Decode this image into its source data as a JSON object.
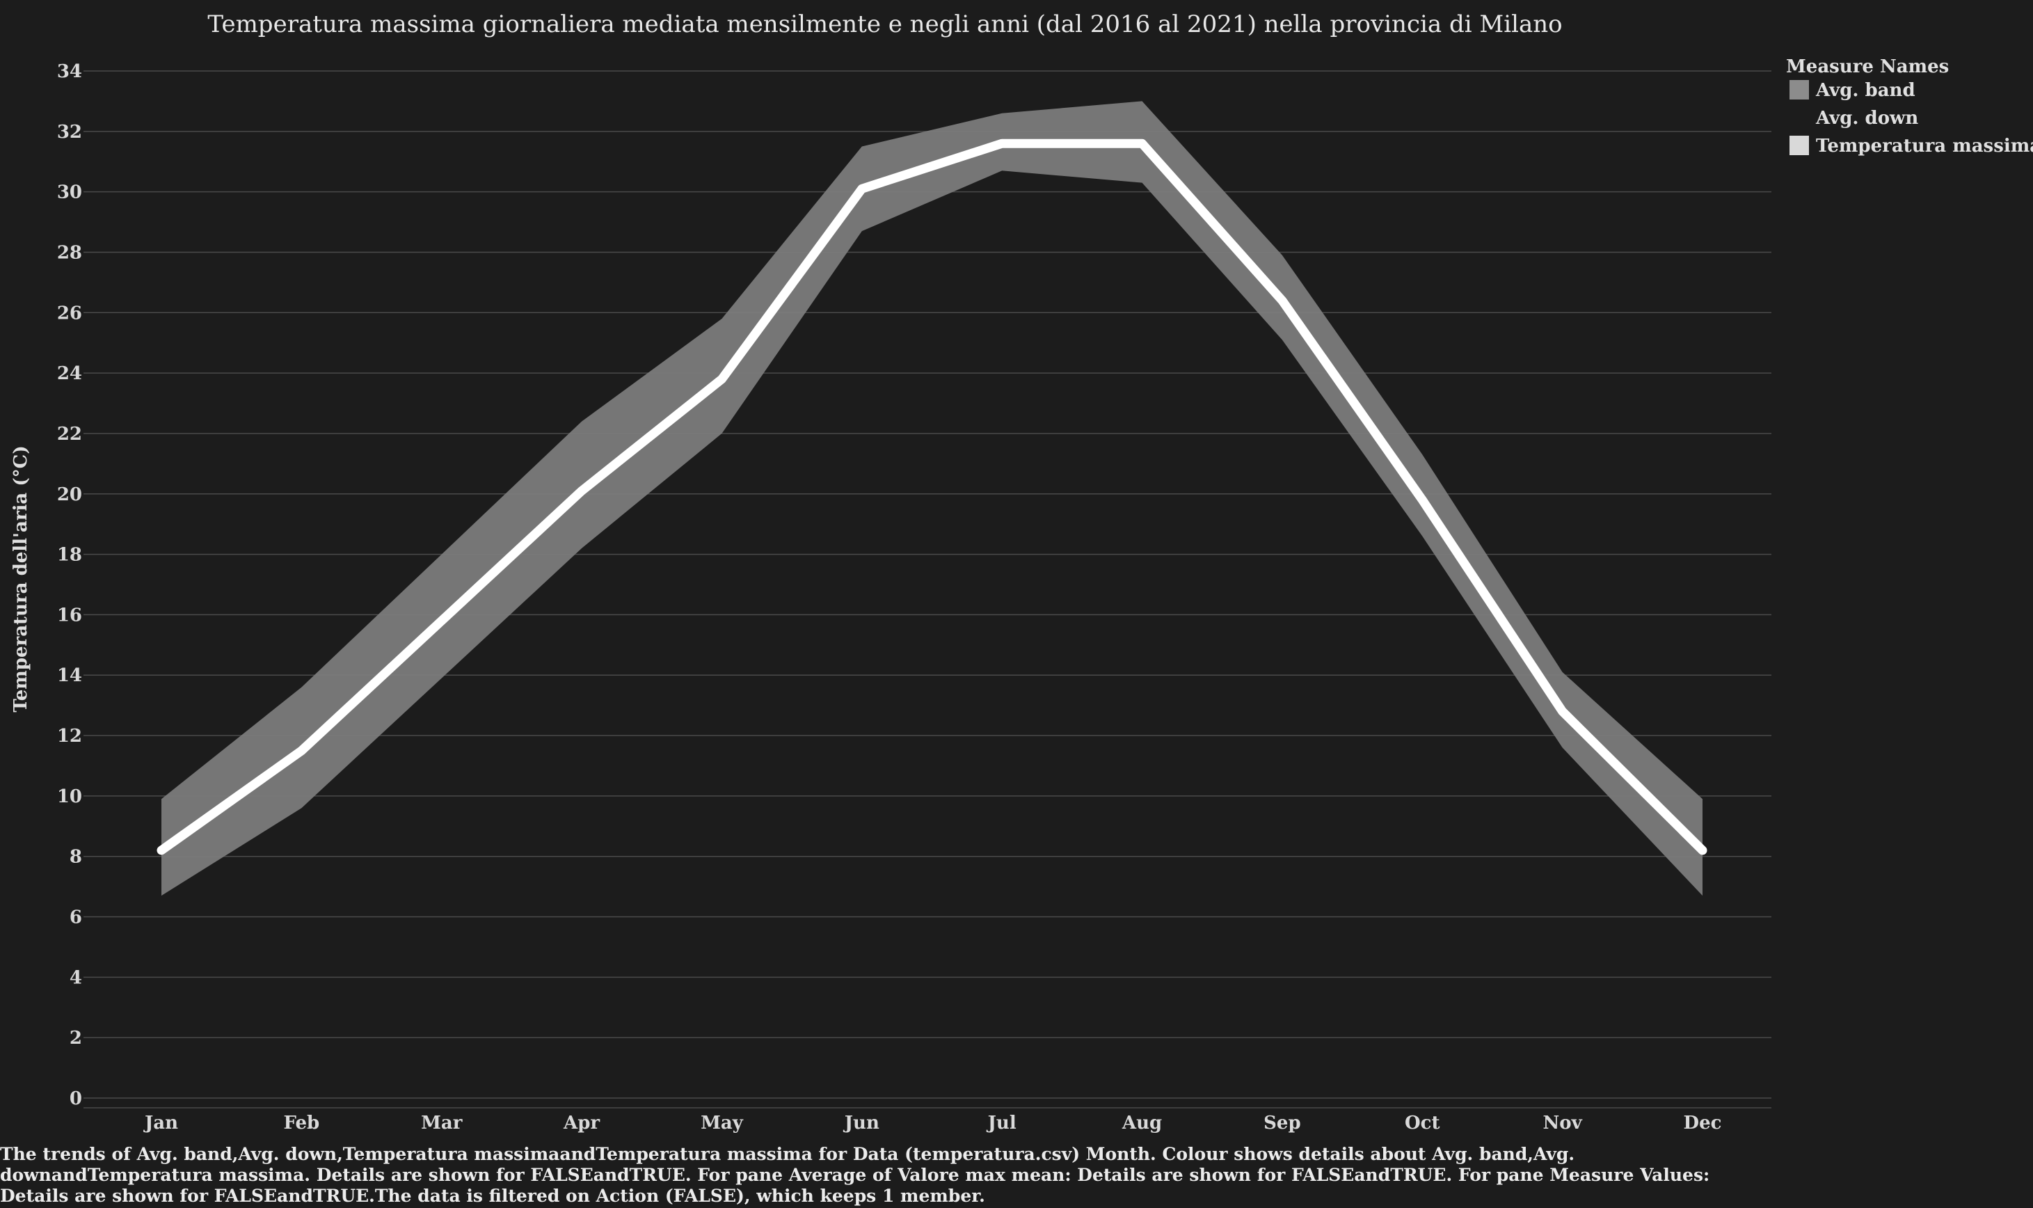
{
  "chart_data": {
    "type": "area",
    "title": "Temperatura massima giornaliera mediata mensilmente e negli anni (dal 2016 al 2021) nella provincia di Milano",
    "ylabel": "Temperatura dell'aria (°C)",
    "xlabel": "",
    "ylim": [
      0,
      34
    ],
    "yticks": [
      0,
      2,
      4,
      6,
      8,
      10,
      12,
      14,
      16,
      18,
      20,
      22,
      24,
      26,
      28,
      30,
      32,
      34
    ],
    "categories": [
      "Jan",
      "Feb",
      "Mar",
      "Apr",
      "May",
      "Jun",
      "Jul",
      "Aug",
      "Sep",
      "Oct",
      "Nov",
      "Dec"
    ],
    "grid": true,
    "legend_position": "top-right",
    "legend_title": "Measure Names",
    "series": [
      {
        "name": "Avg. band",
        "kind": "band",
        "upper": [
          9.9,
          13.6,
          18.0,
          22.4,
          25.8,
          31.5,
          32.6,
          33.0,
          27.9,
          21.3,
          14.1,
          9.9
        ],
        "lower": [
          6.7,
          9.6,
          13.9,
          18.2,
          22.0,
          28.7,
          30.7,
          30.3,
          25.1,
          18.6,
          11.6,
          6.7
        ],
        "color": "#7b7b7b"
      },
      {
        "name": "Avg. down",
        "kind": "hidden",
        "color": "#1c1c1c"
      },
      {
        "name": "Temperatura massima",
        "kind": "line",
        "values": [
          8.2,
          11.5,
          15.8,
          20.1,
          23.8,
          30.1,
          31.6,
          31.6,
          26.4,
          19.8,
          12.8,
          8.2
        ],
        "color": "#ffffff"
      }
    ],
    "caption": "The trends of Avg. band,Avg. down,Temperatura massimaandTemperatura massima for Data (temperatura.csv) Month. Colour shows details about Avg. band,Avg. downandTemperatura massima. Details are shown for FALSEandTRUE. For pane Average of Valore max mean: Details are shown for FALSEandTRUE. For pane Measure Values: Details are shown for FALSEandTRUE.The data is filtered on Action (FALSE), which keeps 1 member."
  },
  "colors": {
    "background": "#1c1c1c",
    "grid": "#4a4a4a",
    "band": "#7b7b7b",
    "line": "#ffffff"
  }
}
